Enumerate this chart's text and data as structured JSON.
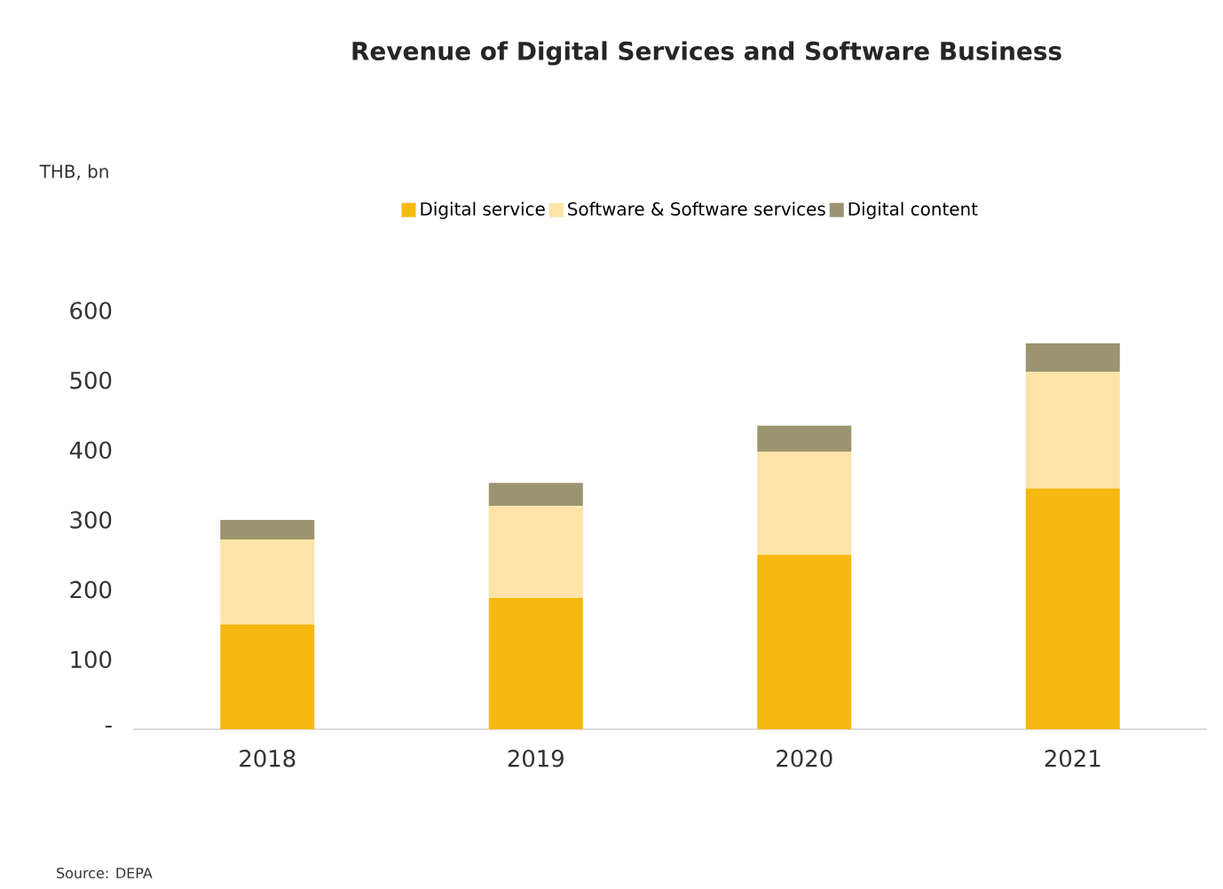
{
  "chart_data": {
    "type": "bar",
    "stacked": true,
    "title": "Revenue of Digital Services and Software Business",
    "categories": [
      "2018",
      "2019",
      "2020",
      "2021"
    ],
    "series": [
      {
        "name": "Digital service",
        "color": "#f5b90f",
        "values": [
          150,
          188,
          250,
          345
        ]
      },
      {
        "name": "Software & Software services",
        "color": "#fde3a7",
        "values": [
          122,
          132,
          148,
          167
        ]
      },
      {
        "name": "Digital content",
        "color": "#9c9470",
        "values": [
          28,
          33,
          37,
          41
        ]
      }
    ],
    "ylim": [
      0,
      600
    ],
    "yticks": [
      {
        "value": 0,
        "label": "-"
      },
      100,
      200,
      300,
      400,
      500,
      600
    ],
    "legend": "top",
    "grid": false,
    "annotations": [
      "THB, bn",
      "Source: DEPA"
    ]
  }
}
